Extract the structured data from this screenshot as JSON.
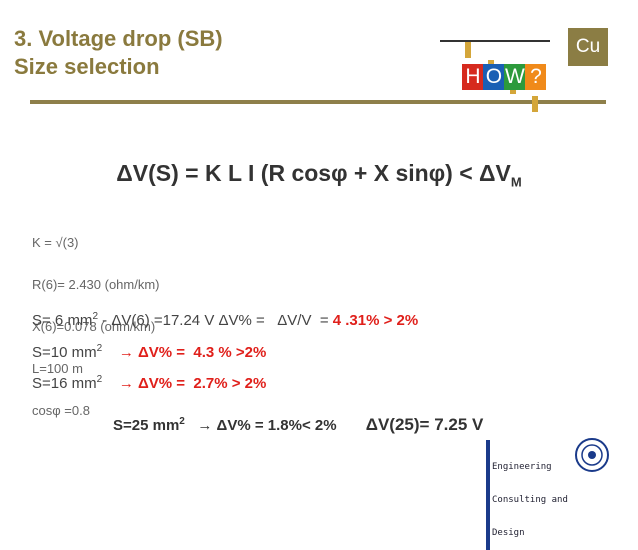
{
  "header": {
    "title": "3. Voltage drop (SB)",
    "subtitle": "Size selection",
    "logo": {
      "letters": [
        "H",
        "O",
        "W",
        "?"
      ]
    },
    "badge": "Cu"
  },
  "formula": {
    "main": "ΔV(S) = K L I (R cosφ + X sinφ) < ΔV",
    "subscript": "M"
  },
  "parameters": [
    "K = √(3)",
    "R(6)= 2.430 (ohm/km)",
    "X(6)=0.078 (ohm/km)",
    "L=100 m",
    "cosφ =0.8"
  ],
  "results": [
    {
      "size": "S= 6 mm",
      "sup": "2",
      "text": " - ΔV(6) =17.24 V ΔV% =   ΔV/V  = ",
      "highlight": "4 .31% > 2%"
    },
    {
      "size": "S=10 mm",
      "sup": "2",
      "highlight": "→ ΔV% =  4.3 % >2%"
    },
    {
      "size": "S=16 mm",
      "sup": "2",
      "highlight": "→ ΔV% =  2.7% > 2%"
    },
    {
      "size": "S=25 mm",
      "sup": "2",
      "text": "→ ΔV% = 1.8%< 2%",
      "extra": "ΔV(25)= 7.25 V"
    }
  ],
  "footer": {
    "lines": [
      "Engineering",
      "Consulting and",
      "Design"
    ]
  }
}
